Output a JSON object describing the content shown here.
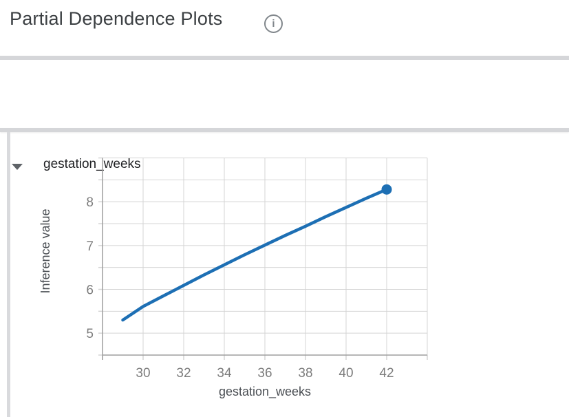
{
  "header": {
    "title": "Partial Dependence Plots",
    "info_glyph": "i"
  },
  "section": {
    "feature_label": "gestation_weeks",
    "state": "expanded"
  },
  "colors": {
    "line": "#1d6fb4",
    "grid": "#d4d4d4",
    "axis": "#9e9e9e",
    "tick_label": "#7d7d7d",
    "axis_title": "#4b4f54",
    "title_text": "#3c4043",
    "icon_gray": "#80868b"
  },
  "chart_data": {
    "type": "line",
    "title": "",
    "xlabel": "gestation_weeks",
    "ylabel": "Inference value",
    "x": [
      29,
      30,
      31,
      32,
      33,
      34,
      35,
      36,
      37,
      38,
      39,
      40,
      41,
      42
    ],
    "y": [
      5.3,
      5.61,
      5.85,
      6.09,
      6.33,
      6.56,
      6.79,
      7.01,
      7.23,
      7.44,
      7.66,
      7.87,
      8.08,
      8.28
    ],
    "xlim": [
      28,
      44
    ],
    "ylim": [
      4.5,
      9.0
    ],
    "x_tick_labels": [
      30,
      32,
      34,
      36,
      38,
      40,
      42
    ],
    "y_tick_labels": [
      5,
      6,
      7,
      8
    ],
    "x_grid_step": 2,
    "y_grid_step": 0.5,
    "grid": true,
    "legend_position": "none",
    "end_point_marker": true
  }
}
